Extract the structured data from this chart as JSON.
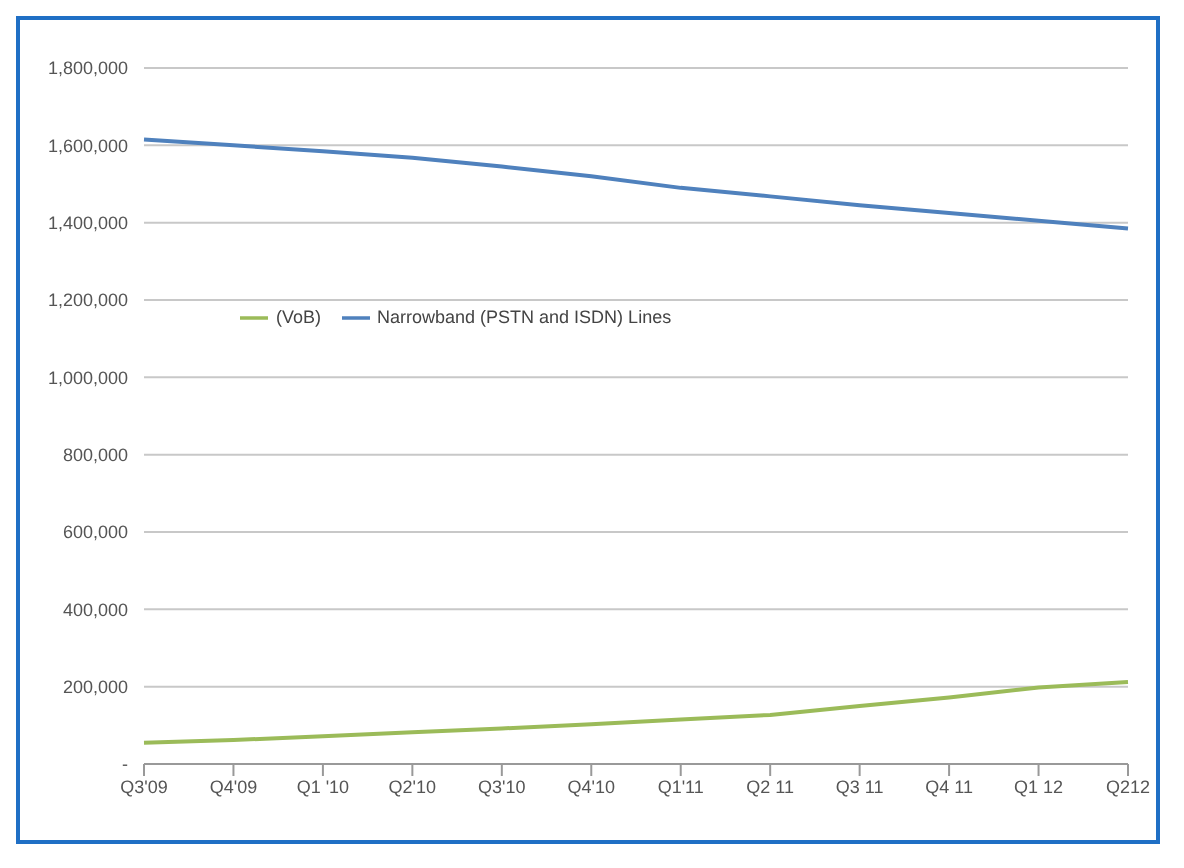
{
  "chart_data": {
    "type": "line",
    "categories": [
      "Q3'09",
      "Q4'09",
      "Q1 '10",
      "Q2'10",
      "Q3'10",
      "Q4'10",
      "Q1'11",
      "Q2 11",
      "Q3 11",
      "Q4 11",
      "Q1 12",
      "Q212"
    ],
    "series": [
      {
        "name": "(VoB)",
        "color": "#9bbb59",
        "values": [
          55000,
          62000,
          72000,
          82000,
          92000,
          103000,
          115000,
          127000,
          150000,
          172000,
          198000,
          212000
        ]
      },
      {
        "name": "Narrowband (PSTN and ISDN) Lines",
        "color": "#4f81bd",
        "values": [
          1615000,
          1600000,
          1585000,
          1568000,
          1545000,
          1520000,
          1490000,
          1468000,
          1445000,
          1425000,
          1405000,
          1385000
        ]
      }
    ],
    "ylim": [
      0,
      1800000
    ],
    "yticks": [
      {
        "value": 0,
        "label": "-"
      },
      {
        "value": 200000,
        "label": "200,000"
      },
      {
        "value": 400000,
        "label": "400,000"
      },
      {
        "value": 600000,
        "label": "600,000"
      },
      {
        "value": 800000,
        "label": "800,000"
      },
      {
        "value": 1000000,
        "label": "1,000,000"
      },
      {
        "value": 1200000,
        "label": "1,200,000"
      },
      {
        "value": 1400000,
        "label": "1,400,000"
      },
      {
        "value": 1600000,
        "label": "1,600,000"
      },
      {
        "value": 1800000,
        "label": "1,800,000"
      }
    ],
    "grid": "y",
    "legend": "top left",
    "marker": "none",
    "line_style": "solid"
  }
}
